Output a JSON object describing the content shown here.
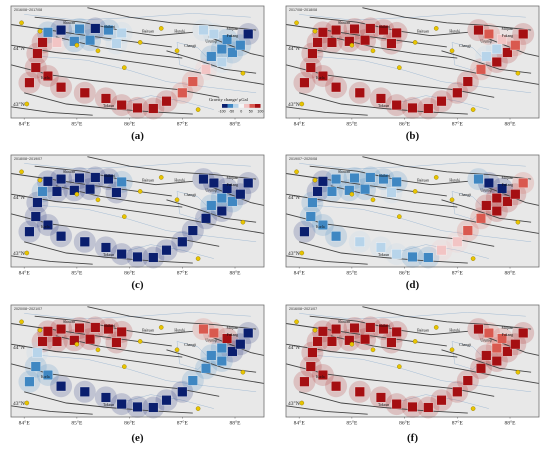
{
  "figure": {
    "panels": [
      {
        "id": "a",
        "caption": "(a)",
        "period": "2016/08~2017/08"
      },
      {
        "id": "b",
        "caption": "(b)",
        "period": "2017/08~2018/08"
      },
      {
        "id": "c",
        "caption": "(c)",
        "period": "2018/08~2019/07"
      },
      {
        "id": "d",
        "caption": "(d)",
        "period": "2019/07~2020/08"
      },
      {
        "id": "e",
        "caption": "(e)",
        "period": "2020/08~2021/07"
      },
      {
        "id": "f",
        "caption": "(f)",
        "period": "2016/08~2021/07"
      }
    ],
    "x_ticks": [
      "84°E",
      "85°E",
      "86°E",
      "87°E",
      "88°E"
    ],
    "y_ticks": [
      "44°N",
      "43°N"
    ],
    "legend": {
      "title": "Gravity change/ μGal",
      "ticks": [
        "-100",
        "-50",
        "0",
        "50",
        "100"
      ]
    },
    "cities": [
      "Shawan",
      "Shihezi",
      "Baituan",
      "Hutubi",
      "Urumqi",
      "Changji",
      "Fukang",
      "Miquan",
      "Toksun",
      "Korla"
    ],
    "colors": {
      "map_background": "#e8e8e8",
      "decrease_strong": "#0a1e6e",
      "decrease_mid": "#3f87c2",
      "decrease_weak": "#b7d4ea",
      "increase_weak": "#f2c4c4",
      "increase_mid": "#d9594f",
      "increase_strong": "#a50f12",
      "fault_line": "#444444",
      "station_marker": "#e8c400"
    },
    "stations": [
      {
        "lon": 84.45,
        "lat": 44.28
      },
      {
        "lon": 84.7,
        "lat": 44.32
      },
      {
        "lon": 85.05,
        "lat": 44.34
      },
      {
        "lon": 85.35,
        "lat": 44.35
      },
      {
        "lon": 85.6,
        "lat": 44.32
      },
      {
        "lon": 85.85,
        "lat": 44.27
      },
      {
        "lon": 84.35,
        "lat": 44.1
      },
      {
        "lon": 84.62,
        "lat": 44.1
      },
      {
        "lon": 84.95,
        "lat": 44.12
      },
      {
        "lon": 85.25,
        "lat": 44.14
      },
      {
        "lon": 85.75,
        "lat": 44.08
      },
      {
        "lon": 84.25,
        "lat": 43.9
      },
      {
        "lon": 84.22,
        "lat": 43.65
      },
      {
        "lon": 84.1,
        "lat": 43.38
      },
      {
        "lon": 84.45,
        "lat": 43.5
      },
      {
        "lon": 84.7,
        "lat": 43.3
      },
      {
        "lon": 85.15,
        "lat": 43.2
      },
      {
        "lon": 85.55,
        "lat": 43.1
      },
      {
        "lon": 85.85,
        "lat": 42.98
      },
      {
        "lon": 86.15,
        "lat": 42.93
      },
      {
        "lon": 86.45,
        "lat": 42.92
      },
      {
        "lon": 86.7,
        "lat": 43.05
      },
      {
        "lon": 87.0,
        "lat": 43.2
      },
      {
        "lon": 87.2,
        "lat": 43.4
      },
      {
        "lon": 87.45,
        "lat": 43.62
      },
      {
        "lon": 87.75,
        "lat": 43.75
      },
      {
        "lon": 87.95,
        "lat": 43.92
      },
      {
        "lon": 88.1,
        "lat": 44.05
      },
      {
        "lon": 88.25,
        "lat": 44.25
      },
      {
        "lon": 87.85,
        "lat": 44.15
      },
      {
        "lon": 87.6,
        "lat": 44.25
      },
      {
        "lon": 87.4,
        "lat": 44.32
      },
      {
        "lon": 87.75,
        "lat": 43.98
      },
      {
        "lon": 87.55,
        "lat": 43.85
      }
    ],
    "panel_values": {
      "a": [
        -70,
        -80,
        -55,
        -80,
        -40,
        -20,
        80,
        10,
        -65,
        -50,
        -30,
        90,
        95,
        100,
        80,
        85,
        90,
        85,
        95,
        90,
        85,
        90,
        70,
        40,
        20,
        -30,
        -60,
        -75,
        -85,
        -45,
        -20,
        -10,
        -50,
        -40
      ],
      "b": [
        90,
        85,
        95,
        90,
        80,
        100,
        90,
        95,
        85,
        90,
        95,
        100,
        90,
        95,
        85,
        95,
        90,
        95,
        100,
        90,
        85,
        95,
        90,
        80,
        75,
        85,
        90,
        60,
        90,
        30,
        40,
        85,
        -10,
        -20
      ],
      "c": [
        -90,
        -100,
        -95,
        -80,
        -85,
        -70,
        -75,
        -95,
        -90,
        -80,
        -100,
        -85,
        -95,
        -90,
        -80,
        -85,
        -90,
        -95,
        -100,
        -95,
        -90,
        -100,
        -95,
        -85,
        -90,
        -80,
        -70,
        -100,
        -95,
        -90,
        -85,
        -80,
        -75,
        -70
      ],
      "d": [
        -80,
        -60,
        -70,
        -50,
        -60,
        -40,
        -90,
        -75,
        -65,
        -45,
        -35,
        -60,
        -70,
        -80,
        -55,
        -40,
        -30,
        -20,
        -10,
        -50,
        -40,
        20,
        30,
        40,
        60,
        80,
        90,
        85,
        70,
        -80,
        -90,
        -60,
        95,
        100
      ],
      "e": [
        95,
        90,
        85,
        90,
        95,
        100,
        90,
        85,
        95,
        90,
        80,
        -30,
        -50,
        -60,
        -70,
        -80,
        -90,
        -95,
        -100,
        -95,
        -90,
        -85,
        -80,
        -70,
        -60,
        -75,
        -80,
        -85,
        -90,
        90,
        70,
        40,
        -60,
        -70
      ],
      "f": [
        95,
        90,
        85,
        95,
        90,
        100,
        90,
        95,
        100,
        85,
        90,
        95,
        90,
        85,
        95,
        100,
        90,
        95,
        100,
        95,
        90,
        85,
        80,
        95,
        90,
        100,
        95,
        85,
        90,
        60,
        40,
        95,
        70,
        80
      ]
    },
    "markers": [
      {
        "lon": 84.3,
        "lat": 44.3
      },
      {
        "lon": 85.0,
        "lat": 44.05
      },
      {
        "lon": 85.4,
        "lat": 43.95
      },
      {
        "lon": 86.2,
        "lat": 44.1
      },
      {
        "lon": 86.9,
        "lat": 43.95
      },
      {
        "lon": 88.15,
        "lat": 43.55
      },
      {
        "lon": 87.3,
        "lat": 42.9
      },
      {
        "lon": 84.05,
        "lat": 43.0
      },
      {
        "lon": 85.9,
        "lat": 43.65
      },
      {
        "lon": 86.6,
        "lat": 44.35
      },
      {
        "lon": 83.95,
        "lat": 44.45
      }
    ]
  }
}
